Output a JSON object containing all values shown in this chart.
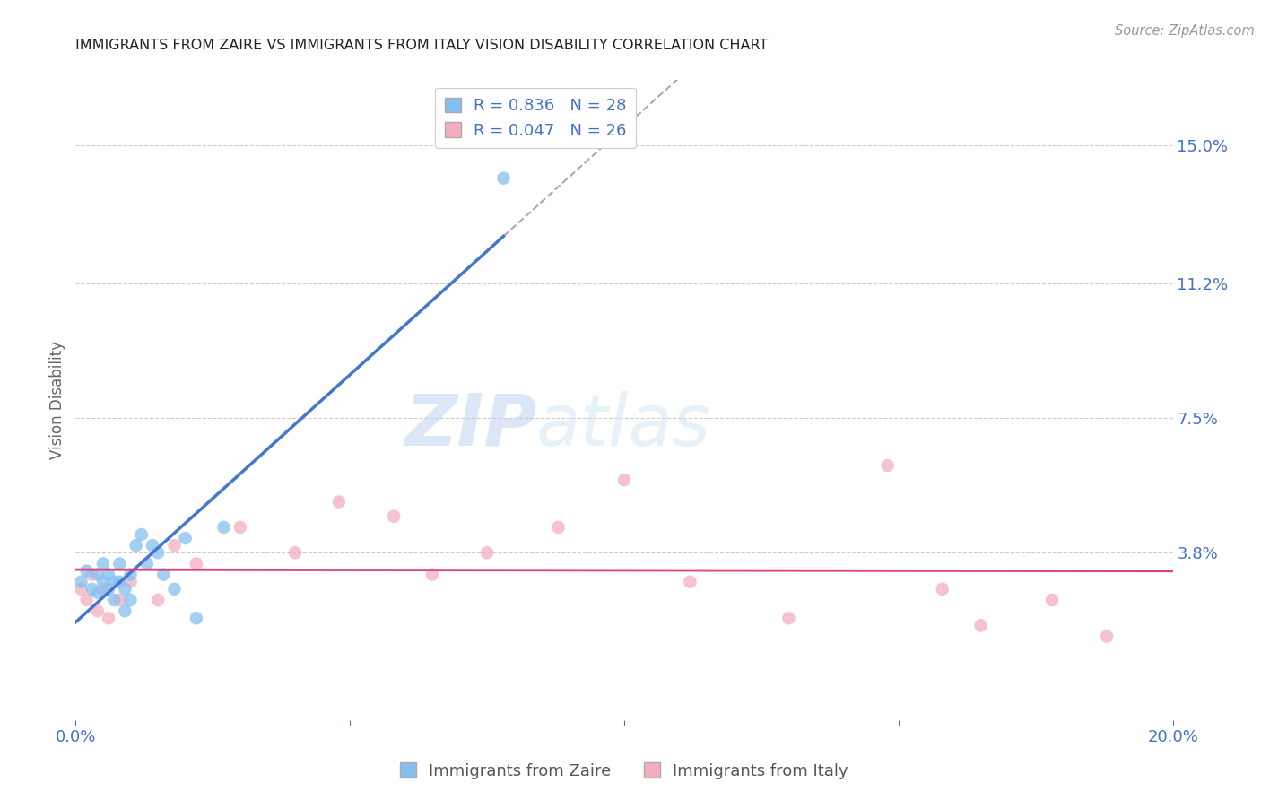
{
  "title": "IMMIGRANTS FROM ZAIRE VS IMMIGRANTS FROM ITALY VISION DISABILITY CORRELATION CHART",
  "source": "Source: ZipAtlas.com",
  "ylabel": "Vision Disability",
  "xlim": [
    0.0,
    0.2
  ],
  "ylim": [
    -0.008,
    0.168
  ],
  "yticks_right": [
    0.038,
    0.075,
    0.112,
    0.15
  ],
  "yticklabels_right": [
    "3.8%",
    "7.5%",
    "11.2%",
    "15.0%"
  ],
  "legend_r1": "R = 0.836",
  "legend_n1": "N = 28",
  "legend_r2": "R = 0.047",
  "legend_n2": "N = 26",
  "legend_label1": "Immigrants from Zaire",
  "legend_label2": "Immigrants from Italy",
  "watermark_zip": "ZIP",
  "watermark_atlas": "atlas",
  "blue_color": "#85bff0",
  "pink_color": "#f5aec0",
  "trend_blue": "#4477cc",
  "trend_pink": "#dd4477",
  "background_color": "#ffffff",
  "grid_color": "#cccccc",
  "zaire_x": [
    0.001,
    0.002,
    0.003,
    0.004,
    0.004,
    0.005,
    0.005,
    0.006,
    0.006,
    0.007,
    0.007,
    0.008,
    0.008,
    0.009,
    0.009,
    0.01,
    0.01,
    0.011,
    0.012,
    0.013,
    0.014,
    0.015,
    0.016,
    0.018,
    0.02,
    0.022,
    0.027,
    0.078
  ],
  "zaire_y": [
    0.03,
    0.033,
    0.028,
    0.032,
    0.027,
    0.03,
    0.035,
    0.028,
    0.032,
    0.03,
    0.025,
    0.035,
    0.03,
    0.028,
    0.022,
    0.032,
    0.025,
    0.04,
    0.043,
    0.035,
    0.04,
    0.038,
    0.032,
    0.028,
    0.042,
    0.02,
    0.045,
    0.141
  ],
  "italy_x": [
    0.001,
    0.002,
    0.003,
    0.004,
    0.005,
    0.006,
    0.008,
    0.01,
    0.015,
    0.018,
    0.022,
    0.03,
    0.04,
    0.048,
    0.058,
    0.065,
    0.075,
    0.088,
    0.1,
    0.112,
    0.13,
    0.148,
    0.158,
    0.165,
    0.178,
    0.188
  ],
  "italy_y": [
    0.028,
    0.025,
    0.032,
    0.022,
    0.028,
    0.02,
    0.025,
    0.03,
    0.025,
    0.04,
    0.035,
    0.045,
    0.038,
    0.052,
    0.048,
    0.032,
    0.038,
    0.045,
    0.058,
    0.03,
    0.02,
    0.062,
    0.028,
    0.018,
    0.025,
    0.015
  ]
}
